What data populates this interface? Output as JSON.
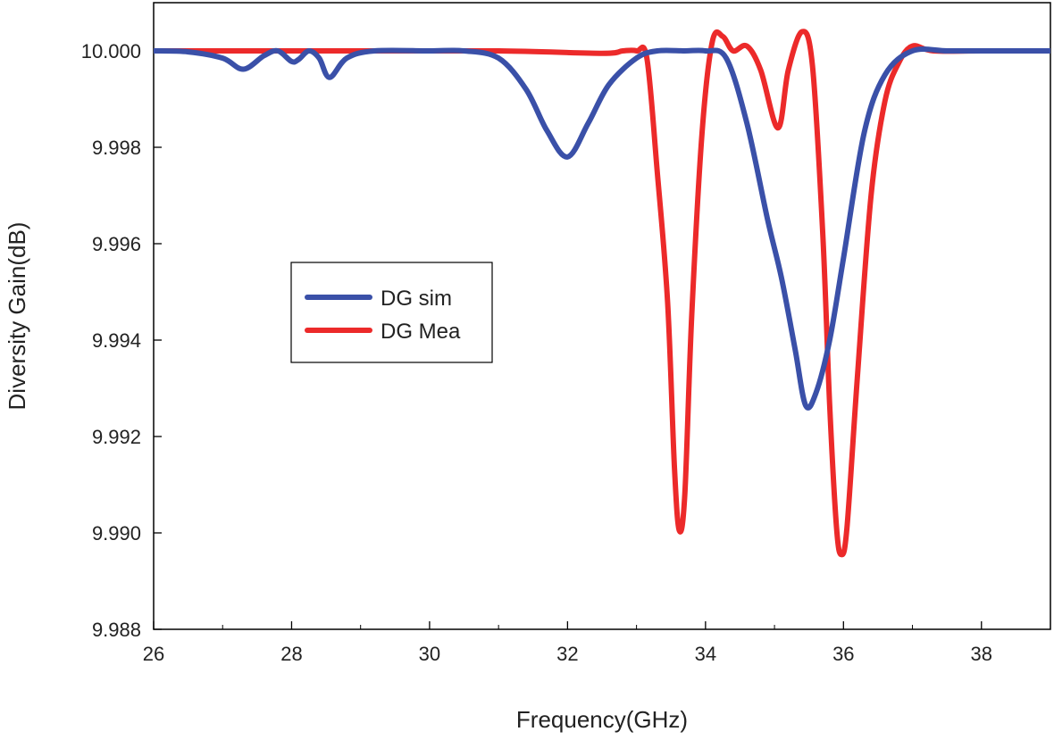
{
  "chart_data": {
    "type": "line",
    "title": "",
    "xlabel": "Frequency(GHz)",
    "ylabel": "Diversity Gain(dB)",
    "xlim": [
      26,
      39
    ],
    "ylim": [
      9.988,
      10.001
    ],
    "xticks": [
      26,
      28,
      30,
      32,
      34,
      36,
      38
    ],
    "xtick_labels": [
      "26",
      "28",
      "30",
      "32",
      "34",
      "36",
      "38"
    ],
    "yticks": [
      9.988,
      9.99,
      9.992,
      9.994,
      9.996,
      9.998,
      10.0
    ],
    "ytick_labels": [
      "9.988",
      "9.990",
      "9.992",
      "9.994",
      "9.996",
      "9.998",
      "10.000"
    ],
    "grid": false,
    "legend_position": "center-left",
    "series": [
      {
        "name": "DG sim",
        "color": "#3a50a8",
        "x": [
          26.0,
          26.5,
          27.0,
          27.3,
          27.6,
          27.8,
          28.0,
          28.1,
          28.25,
          28.4,
          28.55,
          28.8,
          29.2,
          30.0,
          30.5,
          31.0,
          31.4,
          31.7,
          32.0,
          32.3,
          32.6,
          33.0,
          33.3,
          33.7,
          34.0,
          34.3,
          34.6,
          34.9,
          35.1,
          35.3,
          35.45,
          35.6,
          35.8,
          36.0,
          36.3,
          36.6,
          37.0,
          37.5,
          38.0,
          39.0
        ],
        "y": [
          10.0,
          9.99998,
          9.99985,
          9.99962,
          9.9999,
          10.0,
          9.99978,
          9.99982,
          10.0,
          9.99985,
          9.99945,
          9.99985,
          10.0,
          10.0,
          10.0,
          9.99985,
          9.9992,
          9.99835,
          9.9978,
          9.9985,
          9.9993,
          9.99985,
          10.0,
          10.0,
          10.0,
          9.99985,
          9.9985,
          9.9965,
          9.9953,
          9.9938,
          9.99265,
          9.9929,
          9.994,
          9.9957,
          9.9983,
          9.9995,
          10.0,
          10.0,
          10.0,
          10.0
        ]
      },
      {
        "name": "DG Mea",
        "color": "#ec2a2a",
        "x": [
          26.0,
          29.0,
          31.0,
          32.5,
          32.8,
          33.0,
          33.15,
          33.3,
          33.45,
          33.55,
          33.62,
          33.7,
          33.8,
          33.95,
          34.1,
          34.25,
          34.4,
          34.6,
          34.8,
          35.05,
          35.2,
          35.4,
          35.55,
          35.7,
          35.8,
          35.9,
          35.97,
          36.05,
          36.2,
          36.4,
          36.6,
          36.8,
          37.0,
          37.3,
          38.0,
          39.0
        ],
        "y": [
          10.0,
          10.0,
          10.0,
          9.99995,
          10.0,
          10.0,
          9.99985,
          9.9975,
          9.9948,
          9.99135,
          9.99005,
          9.9908,
          9.9945,
          9.9983,
          10.0002,
          10.0003,
          10.0,
          10.0001,
          9.9996,
          9.9984,
          9.9996,
          10.0004,
          9.9997,
          9.9962,
          9.99265,
          9.9901,
          9.98955,
          9.9901,
          9.9932,
          9.997,
          9.99895,
          9.99975,
          10.0001,
          10.0,
          10.0,
          10.0
        ]
      }
    ]
  }
}
